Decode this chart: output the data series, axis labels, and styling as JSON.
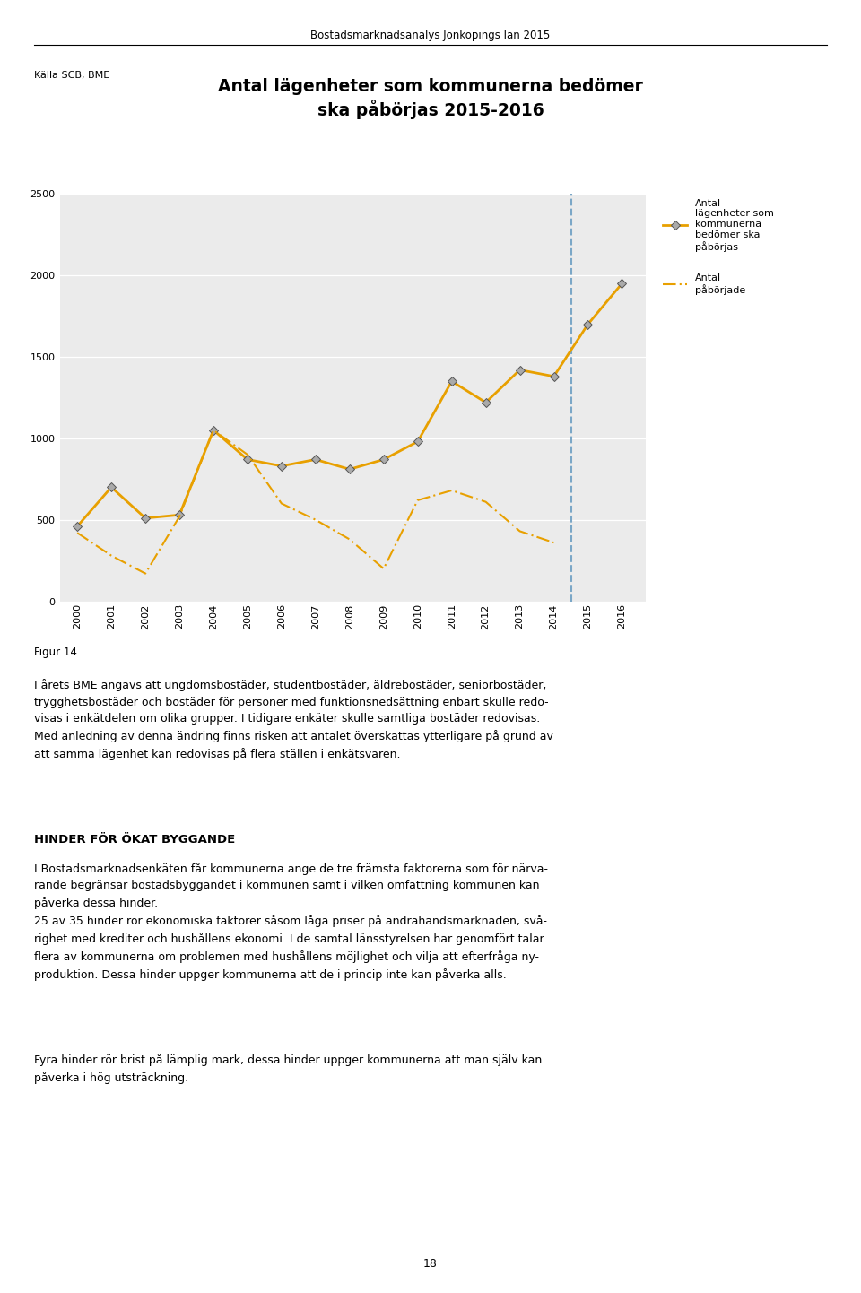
{
  "page_header": "Bostadsmarknadsanalys Jönköpings län 2015",
  "source_label": "Källa SCB, BME",
  "chart_title": "Antal lägenheter som kommunerna bedömer\nska påbörjas 2015-2016",
  "figur_label": "Figur 14",
  "antal_bedomda_years": [
    2000,
    2001,
    2002,
    2003,
    2004,
    2005,
    2006,
    2007,
    2008,
    2009,
    2010,
    2011,
    2012,
    2013,
    2014,
    2015,
    2016
  ],
  "antal_bedomda": [
    460,
    700,
    510,
    530,
    1050,
    870,
    830,
    870,
    810,
    870,
    980,
    1350,
    1220,
    1420,
    1380,
    1700,
    1950
  ],
  "antal_paborjade_years": [
    2000,
    2001,
    2002,
    2003,
    2004,
    2005,
    2006,
    2007,
    2008,
    2009,
    2010,
    2011,
    2012,
    2013,
    2014
  ],
  "antal_paborjade": [
    420,
    280,
    170,
    520,
    1050,
    900,
    600,
    500,
    380,
    200,
    620,
    680,
    610,
    430,
    360
  ],
  "vline_x": 2014.5,
  "ylim": [
    0,
    2500
  ],
  "yticks": [
    0,
    500,
    1000,
    1500,
    2000,
    2500
  ],
  "line1_color": "#E8A000",
  "line2_color": "#E8A000",
  "vline_color": "#7BA7C7",
  "bg_color": "#EBEBEB",
  "legend1_label": "Antal\nlägenheter som\nkommunerna\nbedömer ska\npåbörjas",
  "legend2_label": "Antal\npåbörjade",
  "text_body1": "I årets BME angavs att ungdomsbostäder, studentbostäder, äldrebostäder, seniorbostäder,\ntrygghetsbostäder och bostäder för personer med funktionsnedsättning enbart skulle redo-\nvisas i enkätdelen om olika grupper. I tidigare enkäter skulle samtliga bostäder redovisas.\nMed anledning av denna ändring finns risken att antalet överskattas ytterligare på grund av\natt samma lägenhet kan redovisas på flera ställen i enkätsvaren.",
  "heading2": "HINDER FÖR ÖKAT BYGGANDE",
  "text_body2": "I Bostadsmarknadsenkäten får kommunerna ange de tre främsta faktorerna som för närva-\nrande begränsar bostadsbyggandet i kommunen samt i vilken omfattning kommunen kan\npåverka dessa hinder.\n25 av 35 hinder rör ekonomiska faktorer såsom låga priser på andrahandsmarknaden, svå-\nrighet med krediter och hushållens ekonomi. I de samtal länsstyrelsen har genomfört talar\nflera av kommunerna om problemen med hushållens möjlighet och vilja att efterfråga ny-\nproduktion. Dessa hinder uppger kommunerna att de i princip inte kan påverka alls.",
  "text_body3": "Fyra hinder rör brist på lämplig mark, dessa hinder uppger kommunerna att man själv kan\npåverka i hög utsträckning.",
  "page_number": "18"
}
